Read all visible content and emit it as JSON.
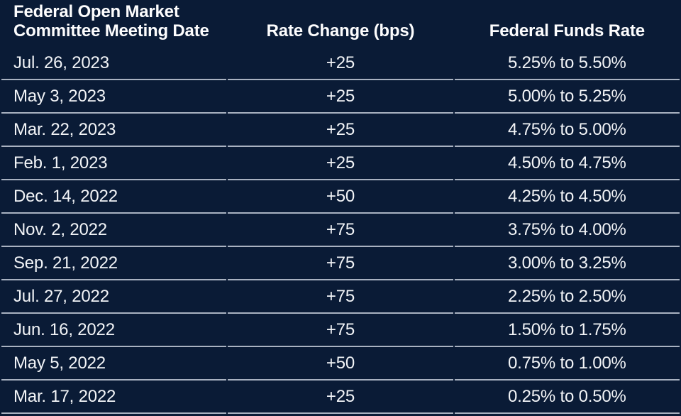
{
  "colors": {
    "background": "#0a1b36",
    "text": "#f2f4f7",
    "header_text": "#fdfdfe",
    "divider": "#a9b2c1"
  },
  "chart_data": {
    "type": "table",
    "columns": [
      {
        "id": "date",
        "label": "Federal Open Market\nCommittee Meeting Date",
        "align": "left"
      },
      {
        "id": "change_bps",
        "label": "Rate Change (bps)",
        "align": "center"
      },
      {
        "id": "rate",
        "label": "Federal Funds Rate",
        "align": "center"
      }
    ],
    "rows": [
      {
        "date": "Jul. 26, 2023",
        "change_bps": "+25",
        "rate": "5.25% to 5.50%"
      },
      {
        "date": "May 3, 2023",
        "change_bps": "+25",
        "rate": "5.00% to 5.25%"
      },
      {
        "date": "Mar. 22, 2023",
        "change_bps": "+25",
        "rate": "4.75% to 5.00%"
      },
      {
        "date": "Feb. 1, 2023",
        "change_bps": "+25",
        "rate": "4.50% to 4.75%"
      },
      {
        "date": "Dec. 14, 2022",
        "change_bps": "+50",
        "rate": "4.25% to 4.50%"
      },
      {
        "date": "Nov. 2, 2022",
        "change_bps": "+75",
        "rate": "3.75% to 4.00%"
      },
      {
        "date": "Sep. 21, 2022",
        "change_bps": "+75",
        "rate": "3.00% to 3.25%"
      },
      {
        "date": "Jul. 27, 2022",
        "change_bps": "+75",
        "rate": "2.25% to 2.50%"
      },
      {
        "date": "Jun. 16, 2022",
        "change_bps": "+75",
        "rate": "1.50% to 1.75%"
      },
      {
        "date": "May 5, 2022",
        "change_bps": "+50",
        "rate": "0.75% to 1.00%"
      },
      {
        "date": "Mar. 17, 2022",
        "change_bps": "+25",
        "rate": "0.25% to 0.50%"
      }
    ]
  }
}
